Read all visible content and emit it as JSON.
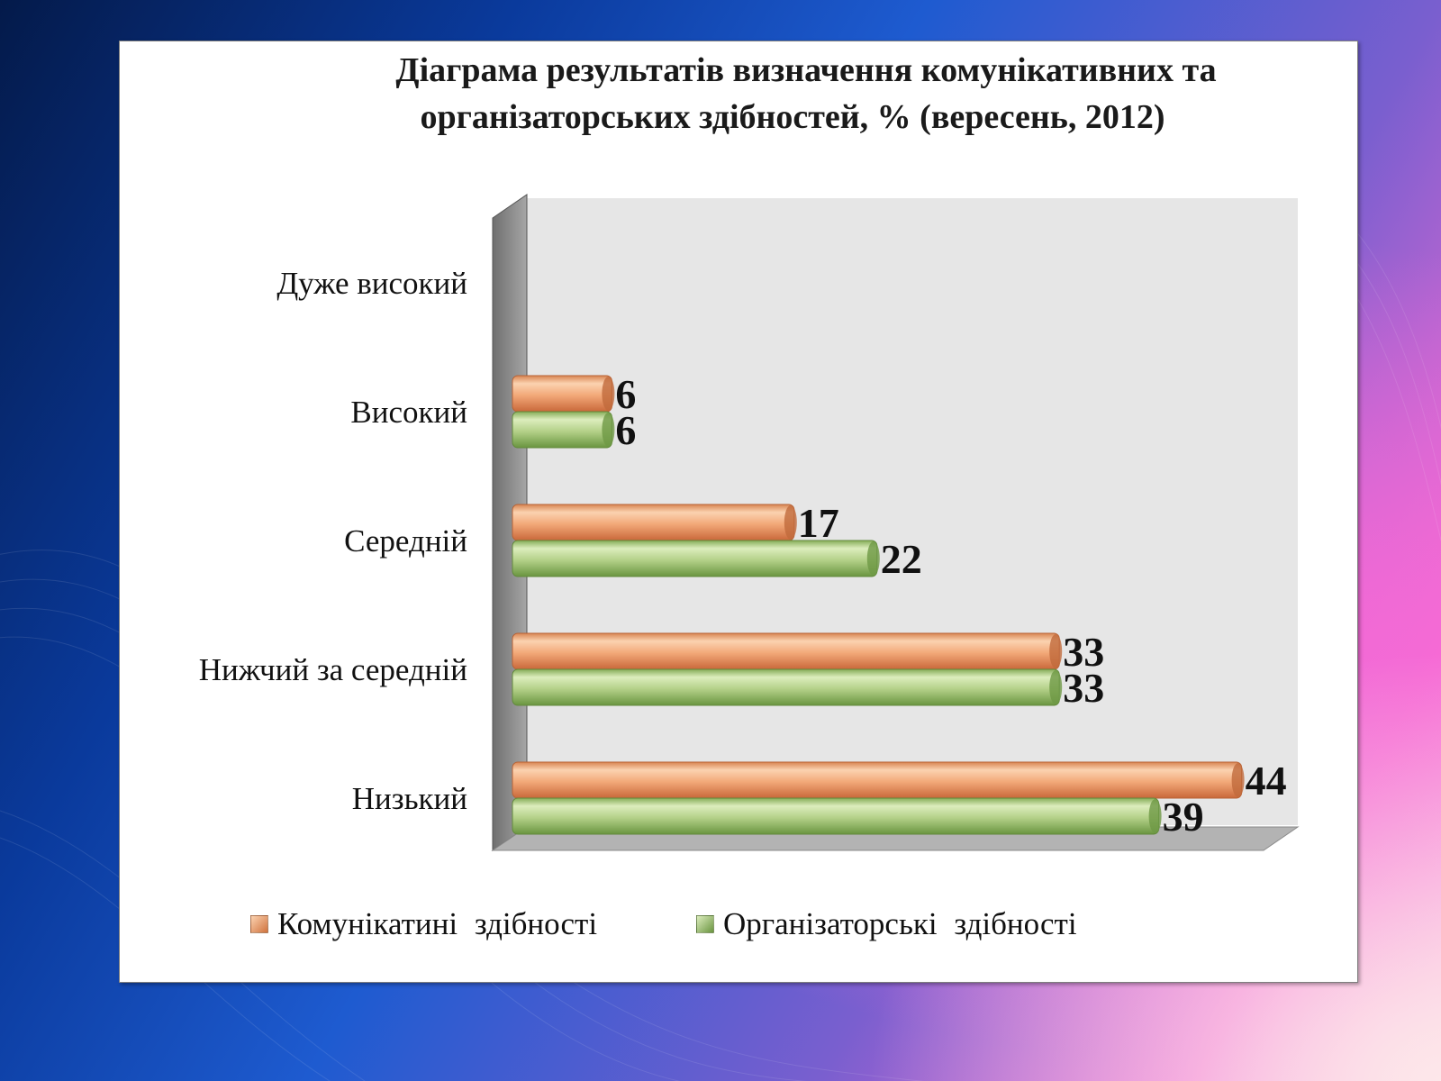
{
  "chart_data": {
    "type": "bar",
    "orientation": "horizontal",
    "title": "Діаграма результатів визначення комунікативних та організаторських здібностей, % (вересень, 2012)",
    "title_lines": [
      "Діаграма результатів визначення комунікативних та",
      "організаторських здібностей, % (вересень, 2012)"
    ],
    "categories": [
      "Дуже високий",
      "Високий",
      "Середній",
      "Нижчий за середній",
      "Низький"
    ],
    "series": [
      {
        "name": "Комунікатині здібності",
        "values": [
          null,
          6,
          17,
          33,
          44
        ],
        "labels": [
          "",
          "6",
          "17",
          "33",
          "44"
        ],
        "color": "#f0a070"
      },
      {
        "name": "Організаторські здібності",
        "values": [
          null,
          6,
          22,
          33,
          39
        ],
        "labels": [
          "",
          "6",
          "22",
          "33",
          "39"
        ],
        "color": "#a8c878"
      }
    ],
    "xlim": [
      0,
      50
    ],
    "grid": false,
    "legend_position": "bottom",
    "style": "3d"
  },
  "colors": {
    "orange_light": "#f8c49c",
    "orange_dark": "#d0733e",
    "green_light": "#cfe3a8",
    "green_dark": "#74a04a",
    "wall": "#e6e6e6",
    "side_wall": "#8c8c8c",
    "floor": "#b4b4b4"
  }
}
